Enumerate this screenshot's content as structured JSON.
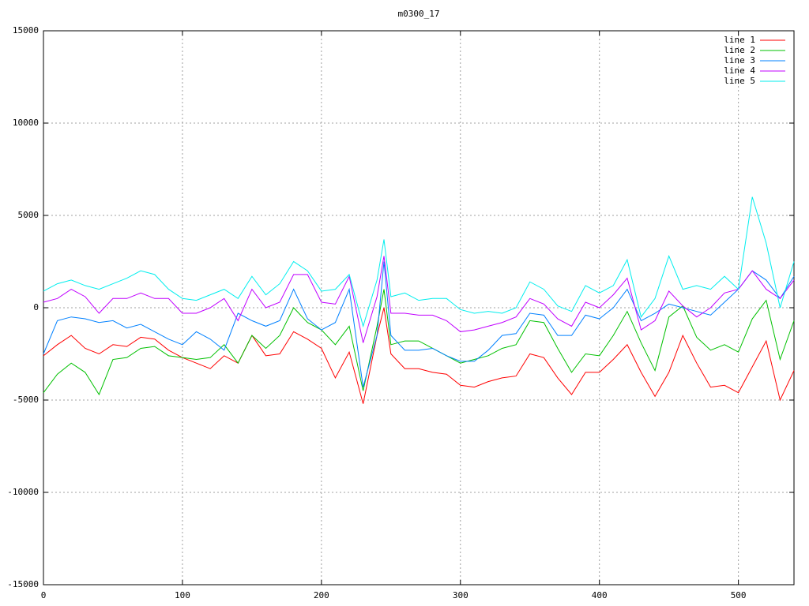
{
  "chart_data": {
    "type": "line",
    "title": "m0300_17",
    "x": [
      0,
      10,
      20,
      30,
      40,
      50,
      60,
      70,
      80,
      90,
      100,
      110,
      120,
      130,
      140,
      150,
      160,
      170,
      180,
      190,
      200,
      210,
      220,
      230,
      240,
      245,
      250,
      260,
      270,
      280,
      290,
      300,
      310,
      320,
      330,
      340,
      350,
      360,
      370,
      380,
      390,
      400,
      410,
      420,
      430,
      440,
      450,
      460,
      470,
      480,
      490,
      500,
      510,
      520,
      530,
      540
    ],
    "xlim": [
      0,
      540
    ],
    "xticks": [
      0,
      100,
      200,
      300,
      400,
      500
    ],
    "ylim": [
      -15000,
      15000
    ],
    "yticks": [
      -15000,
      -10000,
      -5000,
      0,
      5000,
      10000,
      15000
    ],
    "grid": true,
    "legend": "top-right",
    "series": [
      {
        "name": "line 1",
        "color": "#ff0000",
        "values": [
          -2600,
          -2000,
          -1500,
          -2200,
          -2500,
          -2000,
          -2100,
          -1600,
          -1700,
          -2300,
          -2700,
          -3000,
          -3300,
          -2600,
          -3000,
          -1500,
          -2600,
          -2500,
          -1300,
          -1700,
          -2200,
          -3800,
          -2400,
          -5200,
          -1500,
          0,
          -2500,
          -3300,
          -3300,
          -3500,
          -3600,
          -4200,
          -4300,
          -4000,
          -3800,
          -3700,
          -2500,
          -2700,
          -3800,
          -4700,
          -3500,
          -3500,
          -2800,
          -2000,
          -3500,
          -4800,
          -3500,
          -1500,
          -3000,
          -4300,
          -4200,
          -4600,
          -3200,
          -1800,
          -5000,
          -3400
        ]
      },
      {
        "name": "line 2",
        "color": "#00c000",
        "values": [
          -4600,
          -3600,
          -3000,
          -3500,
          -4700,
          -2800,
          -2700,
          -2200,
          -2100,
          -2600,
          -2700,
          -2800,
          -2700,
          -2000,
          -3000,
          -1500,
          -2200,
          -1500,
          0,
          -800,
          -1200,
          -2000,
          -1000,
          -4500,
          -1000,
          1000,
          -2000,
          -1800,
          -1800,
          -2200,
          -2600,
          -3000,
          -2800,
          -2600,
          -2200,
          -2000,
          -700,
          -800,
          -2200,
          -3500,
          -2500,
          -2600,
          -1500,
          -200,
          -1900,
          -3400,
          -500,
          100,
          -1600,
          -2300,
          -2000,
          -2400,
          -600,
          400,
          -2800,
          -700
        ]
      },
      {
        "name": "line 3",
        "color": "#0080ff",
        "values": [
          -2500,
          -700,
          -500,
          -600,
          -800,
          -700,
          -1100,
          -900,
          -1300,
          -1700,
          -2000,
          -1300,
          -1700,
          -2300,
          -300,
          -700,
          -1000,
          -700,
          1000,
          -600,
          -1200,
          -800,
          1000,
          -4300,
          -1500,
          2500,
          -1500,
          -2300,
          -2300,
          -2200,
          -2600,
          -2900,
          -2900,
          -2300,
          -1500,
          -1400,
          -300,
          -400,
          -1500,
          -1500,
          -400,
          -600,
          0,
          1000,
          -700,
          -300,
          200,
          0,
          -200,
          -400,
          300,
          1000,
          2000,
          1500,
          500,
          1700
        ]
      },
      {
        "name": "line 4",
        "color": "#c000ff",
        "values": [
          300,
          500,
          1000,
          600,
          -300,
          500,
          500,
          800,
          500,
          500,
          -300,
          -300,
          0,
          500,
          -700,
          1000,
          0,
          300,
          1800,
          1800,
          300,
          200,
          1700,
          -1900,
          600,
          2800,
          -300,
          -300,
          -400,
          -400,
          -700,
          -1300,
          -1200,
          -1000,
          -800,
          -500,
          500,
          200,
          -600,
          -1000,
          300,
          0,
          700,
          1600,
          -1200,
          -700,
          900,
          100,
          -500,
          0,
          800,
          1000,
          2000,
          1000,
          500,
          1500
        ]
      },
      {
        "name": "line 5",
        "color": "#00eeee",
        "values": [
          900,
          1300,
          1500,
          1200,
          1000,
          1300,
          1600,
          2000,
          1800,
          1000,
          500,
          400,
          700,
          1000,
          500,
          1700,
          700,
          1300,
          2500,
          2000,
          900,
          1000,
          1800,
          -1000,
          1500,
          3700,
          600,
          800,
          400,
          500,
          500,
          -100,
          -300,
          -200,
          -300,
          0,
          1400,
          1000,
          100,
          -200,
          1200,
          800,
          1200,
          2600,
          -500,
          500,
          2800,
          1000,
          1200,
          1000,
          1700,
          1000,
          6000,
          3500,
          0,
          2500
        ]
      }
    ]
  }
}
